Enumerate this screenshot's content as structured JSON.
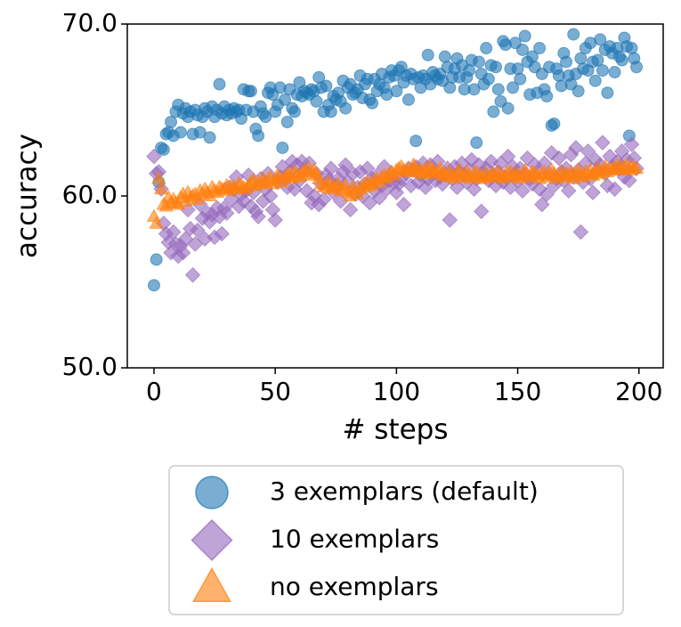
{
  "chart_data": {
    "type": "scatter",
    "xlabel": "# steps",
    "ylabel": "accuracy",
    "xlim": [
      -11,
      210
    ],
    "ylim": [
      50,
      70
    ],
    "xticks": [
      0,
      50,
      100,
      150,
      200
    ],
    "yticks": [
      {
        "value": 50,
        "label": "50.0"
      },
      {
        "value": 60,
        "label": "60.0"
      },
      {
        "value": 70,
        "label": "70.0"
      }
    ],
    "grid": false,
    "legend": "below",
    "x": [
      0,
      1,
      2,
      3,
      4,
      5,
      6,
      7,
      8,
      9,
      10,
      11,
      12,
      13,
      14,
      15,
      16,
      17,
      18,
      19,
      20,
      21,
      22,
      23,
      24,
      25,
      26,
      27,
      28,
      29,
      30,
      31,
      32,
      33,
      34,
      35,
      36,
      37,
      38,
      39,
      40,
      41,
      42,
      43,
      44,
      45,
      46,
      47,
      48,
      49,
      50,
      51,
      52,
      53,
      54,
      55,
      56,
      57,
      58,
      59,
      60,
      61,
      62,
      63,
      64,
      65,
      66,
      67,
      68,
      69,
      70,
      71,
      72,
      73,
      74,
      75,
      76,
      77,
      78,
      79,
      80,
      81,
      82,
      83,
      84,
      85,
      86,
      87,
      88,
      89,
      90,
      91,
      92,
      93,
      94,
      95,
      96,
      97,
      98,
      99,
      100,
      101,
      102,
      103,
      104,
      105,
      106,
      107,
      108,
      109,
      110,
      111,
      112,
      113,
      114,
      115,
      116,
      117,
      118,
      119,
      120,
      121,
      122,
      123,
      124,
      125,
      126,
      127,
      128,
      129,
      130,
      131,
      132,
      133,
      134,
      135,
      136,
      137,
      138,
      139,
      140,
      141,
      142,
      143,
      144,
      145,
      146,
      147,
      148,
      149,
      150,
      151,
      152,
      153,
      154,
      155,
      156,
      157,
      158,
      159,
      160,
      161,
      162,
      163,
      164,
      165,
      166,
      167,
      168,
      169,
      170,
      171,
      172,
      173,
      174,
      175,
      176,
      177,
      178,
      179,
      180,
      181,
      182,
      183,
      184,
      185,
      186,
      187,
      188,
      189,
      190,
      191,
      192,
      193,
      194,
      195,
      196,
      197,
      198,
      199
    ],
    "series": [
      {
        "name": "3 exemplars (default)",
        "color": "#1f77b4",
        "marker": "circle",
        "values": [
          54.8,
          56.3,
          60.8,
          62.8,
          62.7,
          63.6,
          63.7,
          64.3,
          63.5,
          64.9,
          65.3,
          63.7,
          64.8,
          65.1,
          64.6,
          64.9,
          63.6,
          65.0,
          64.7,
          63.7,
          64.6,
          65.1,
          64.9,
          63.4,
          65.2,
          64.6,
          65.0,
          66.5,
          64.8,
          65.2,
          64.7,
          65.0,
          64.8,
          65.1,
          64.9,
          65.0,
          64.5,
          66.2,
          65.0,
          66.1,
          66.1,
          64.9,
          63.9,
          63.5,
          65.2,
          64.8,
          64.6,
          66.0,
          66.3,
          65.9,
          64.9,
          65.3,
          66.3,
          62.8,
          65.6,
          64.3,
          66.2,
          65.1,
          64.9,
          65.9,
          66.6,
          65.8,
          66.1,
          66.0,
          65.9,
          66.2,
          66.1,
          65.5,
          66.9,
          66.3,
          64.9,
          66.4,
          65.3,
          64.9,
          65.8,
          65.6,
          66.0,
          65.5,
          66.7,
          65.1,
          66.3,
          66.5,
          65.9,
          66.0,
          66.2,
          67.0,
          65.7,
          66.5,
          66.8,
          65.6,
          65.4,
          66.8,
          66.1,
          66.5,
          67.1,
          66.3,
          65.9,
          66.9,
          67.3,
          67.0,
          66.1,
          67.3,
          67.5,
          66.6,
          67.0,
          65.6,
          67.1,
          66.8,
          63.2,
          66.9,
          66.3,
          67.0,
          66.8,
          68.2,
          66.5,
          67.2,
          67.0,
          66.8,
          67.1,
          66.7,
          68.1,
          67.5,
          66.3,
          66.9,
          67.4,
          68.0,
          66.9,
          67.6,
          66.2,
          66.9,
          67.3,
          67.9,
          66.2,
          63.1,
          67.8,
          67.1,
          66.5,
          68.6,
          66.8,
          67.6,
          64.9,
          67.5,
          66.2,
          65.5,
          69.0,
          68.8,
          65.1,
          67.4,
          66.3,
          68.9,
          67.4,
          66.8,
          68.5,
          69.3,
          67.8,
          65.9,
          68.1,
          67.5,
          66.0,
          68.6,
          67.1,
          66.2,
          65.8,
          67.5,
          64.1,
          64.2,
          67.4,
          67.0,
          66.4,
          68.3,
          67.8,
          67.0,
          66.5,
          69.4,
          67.1,
          66.1,
          68.0,
          67.4,
          68.6,
          67.3,
          68.9,
          67.8,
          66.7,
          67.9,
          69.1,
          67.3,
          68.5,
          66.0,
          68.7,
          68.3,
          67.2,
          68.6,
          68.1,
          67.9,
          69.2,
          68.7,
          63.5,
          68.6,
          68.0,
          67.5
        ]
      },
      {
        "name": "10 exemplars",
        "color": "#9467bd",
        "marker": "diamond",
        "values": [
          62.3,
          61.3,
          61.4,
          60.4,
          58.4,
          57.8,
          57.3,
          56.7,
          57.9,
          57.2,
          56.5,
          57.1,
          56.7,
          57.5,
          59.2,
          58.1,
          55.4,
          57.2,
          58.0,
          59.5,
          58.7,
          57.5,
          59.0,
          58.5,
          58.9,
          57.6,
          59.3,
          58.8,
          57.8,
          59.3,
          59.0,
          60.5,
          59.8,
          60.4,
          61.1,
          59.4,
          60.1,
          59.7,
          60.3,
          61.2,
          59.4,
          60.2,
          59.1,
          58.8,
          61.0,
          59.7,
          60.4,
          61.3,
          60.0,
          59.2,
          58.6,
          60.8,
          61.1,
          61.7,
          61.0,
          60.5,
          61.4,
          62.0,
          60.4,
          61.8,
          60.9,
          62.0,
          61.5,
          60.3,
          61.9,
          59.6,
          60.0,
          61.3,
          59.5,
          60.7,
          59.8,
          61.2,
          60.9,
          61.6,
          60.2,
          60.6,
          61.0,
          59.7,
          61.4,
          61.8,
          60.8,
          59.2,
          61.3,
          60.1,
          60.5,
          61.4,
          60.0,
          60.7,
          61.6,
          59.6,
          61.0,
          60.3,
          61.2,
          59.9,
          60.6,
          61.7,
          60.4,
          60.9,
          61.3,
          60.8,
          60.2,
          60.7,
          61.0,
          59.5,
          61.3,
          61.6,
          60.6,
          61.5,
          61.7,
          60.8,
          61.2,
          61.9,
          60.5,
          61.0,
          61.8,
          61.4,
          60.9,
          62.0,
          61.1,
          60.7,
          61.3,
          61.6,
          58.6,
          61.0,
          61.7,
          60.5,
          61.4,
          61.9,
          61.2,
          60.8,
          61.5,
          62.1,
          60.4,
          61.0,
          61.8,
          59.1,
          61.3,
          61.6,
          60.9,
          62.0,
          61.2,
          60.6,
          61.4,
          61.9,
          60.8,
          61.1,
          62.3,
          60.5,
          61.7,
          61.3,
          60.9,
          61.6,
          60.3,
          61.2,
          62.2,
          61.0,
          60.7,
          61.8,
          61.4,
          60.4,
          59.5,
          61.9,
          60.1,
          61.3,
          62.5,
          60.6,
          61.0,
          62.2,
          61.4,
          60.9,
          61.6,
          60.3,
          62.4,
          61.1,
          62.8,
          61.5,
          57.9,
          60.8,
          61.9,
          62.6,
          61.0,
          60.2,
          62.1,
          61.5,
          61.8,
          63.1,
          61.3,
          60.6,
          62.3,
          61.7,
          60.4,
          62.0,
          61.6,
          62.6,
          61.1,
          62.1,
          60.9,
          63.0,
          62.2,
          61.6
        ]
      },
      {
        "name": "no exemplars",
        "color": "#ff7f0e",
        "marker": "triangle",
        "values": [
          58.8,
          58.4,
          61.0,
          60.4,
          59.5,
          59.4,
          59.9,
          59.6,
          59.8,
          59.6,
          59.5,
          59.9,
          60.1,
          59.7,
          60.2,
          59.9,
          60.0,
          60.1,
          59.8,
          60.3,
          60.1,
          60.4,
          60.2,
          60.0,
          60.5,
          60.3,
          60.2,
          60.5,
          60.4,
          60.4,
          60.6,
          60.3,
          60.6,
          60.5,
          60.4,
          60.7,
          60.6,
          60.5,
          60.4,
          60.6,
          60.8,
          60.9,
          60.6,
          60.8,
          60.7,
          61.0,
          60.8,
          60.9,
          61.1,
          60.7,
          60.9,
          61.2,
          61.0,
          60.8,
          61.1,
          61.2,
          61.3,
          61.0,
          61.4,
          61.2,
          61.1,
          61.3,
          61.5,
          61.4,
          61.6,
          61.2,
          61.5,
          61.3,
          61.0,
          60.7,
          60.5,
          60.6,
          60.8,
          60.4,
          60.6,
          60.5,
          60.7,
          60.3,
          60.4,
          60.6,
          60.2,
          60.0,
          60.5,
          60.3,
          60.1,
          60.4,
          60.6,
          60.5,
          60.8,
          60.7,
          60.6,
          60.9,
          61.0,
          60.8,
          61.1,
          61.2,
          61.0,
          61.3,
          61.4,
          61.2,
          61.5,
          61.6,
          61.7,
          61.5,
          61.4,
          61.6,
          61.5,
          61.8,
          61.6,
          61.4,
          61.5,
          61.3,
          61.6,
          61.4,
          61.7,
          61.5,
          61.3,
          61.4,
          61.6,
          61.2,
          61.3,
          61.1,
          61.4,
          61.2,
          61.0,
          61.3,
          61.5,
          61.2,
          61.1,
          61.4,
          61.2,
          61.0,
          61.3,
          61.4,
          61.1,
          61.2,
          61.0,
          61.3,
          61.1,
          61.2,
          61.3,
          61.1,
          61.4,
          61.2,
          61.0,
          61.3,
          61.2,
          61.4,
          61.1,
          61.3,
          61.2,
          61.0,
          61.3,
          61.5,
          61.2,
          61.1,
          61.4,
          61.3,
          61.2,
          61.0,
          61.3,
          61.4,
          61.1,
          61.2,
          61.5,
          61.3,
          61.0,
          61.2,
          61.4,
          61.1,
          61.3,
          61.2,
          61.4,
          61.0,
          61.3,
          61.5,
          61.2,
          61.1,
          61.4,
          61.3,
          61.5,
          61.2,
          61.4,
          61.6,
          61.3,
          61.5,
          61.7,
          61.4,
          61.6,
          61.5,
          61.6,
          61.8,
          61.5,
          61.7,
          61.6,
          61.8,
          61.5,
          61.7,
          61.6,
          61.6
        ]
      }
    ]
  }
}
